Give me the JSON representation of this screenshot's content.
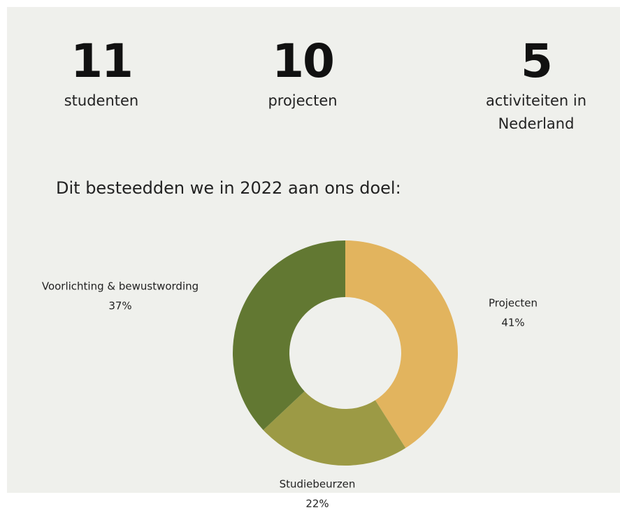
{
  "stats": [
    {
      "value": 11,
      "label": "studenten"
    },
    {
      "value": 10,
      "label": "projecten"
    },
    {
      "value": 5,
      "label": "activiteiten in Nederland"
    }
  ],
  "chart_data": {
    "type": "donut",
    "title": "Dit besteedden we in 2022 aan ons doel:",
    "categories": [
      "Projecten",
      "Studiebeurzen",
      "Voorlichting & bewustwording"
    ],
    "values": [
      41,
      22,
      37
    ],
    "value_labels": [
      "41%",
      "22%",
      "37%"
    ],
    "colors": [
      "#e2b45e",
      "#9c9a45",
      "#627832"
    ]
  }
}
